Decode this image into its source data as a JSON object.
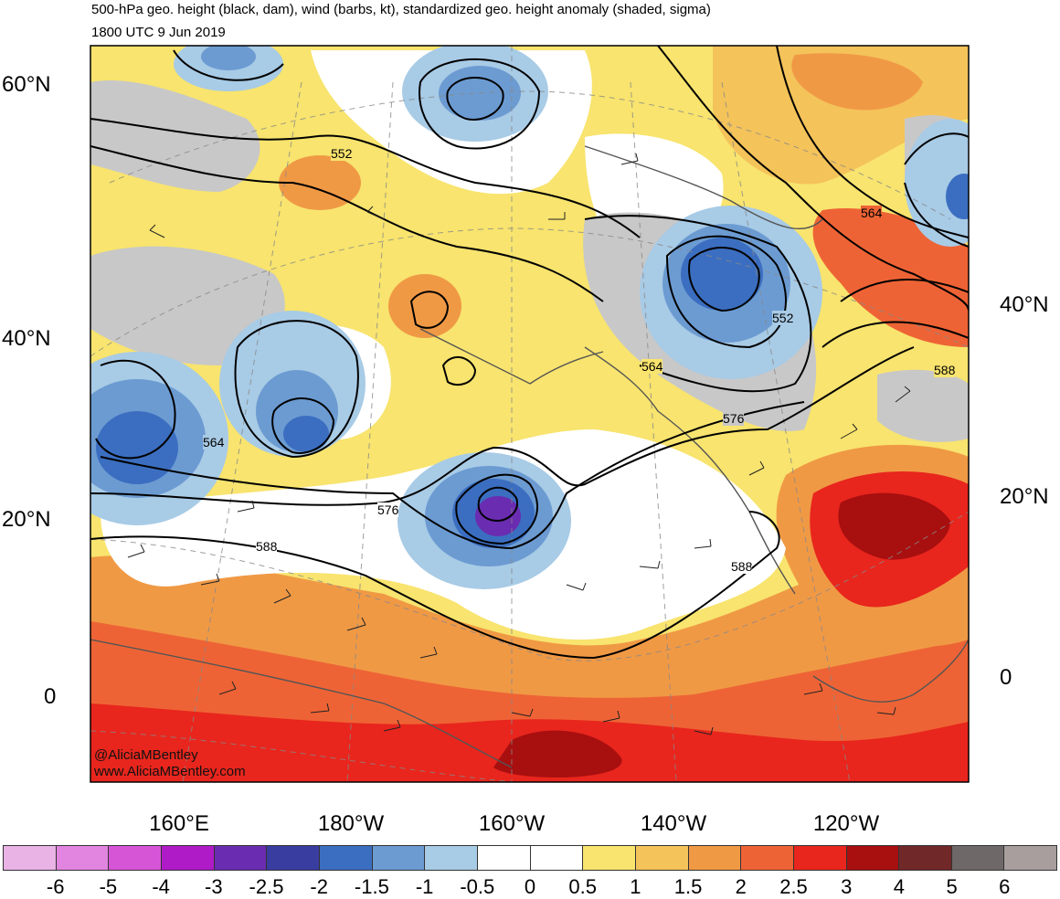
{
  "header": {
    "title": "500-hPa geo. height (black, dam), wind (barbs, kt), standardized geo. height anomaly (shaded, sigma)",
    "valid_time": "1800 UTC 9 Jun 2019"
  },
  "map": {
    "lat_labels_left": [
      "60°N",
      "40°N",
      "20°N",
      "0"
    ],
    "lat_labels_right": [
      "40°N",
      "20°N",
      "0"
    ],
    "lon_labels": [
      "160°E",
      "180°W",
      "160°W",
      "140°W",
      "120°W"
    ],
    "height_contour_labels": [
      "552",
      "552",
      "564",
      "564",
      "564",
      "576",
      "576",
      "588",
      "588",
      "588"
    ],
    "watermark": {
      "handle": "@AliciaMBentley",
      "site": "www.AliciaMBentley.com"
    }
  },
  "colorbar": {
    "labels": [
      "-6",
      "-5",
      "-4",
      "-3",
      "-2.5",
      "-2",
      "-1.5",
      "-1",
      "-0.5",
      "0",
      "0.5",
      "1",
      "1.5",
      "2",
      "2.5",
      "3",
      "4",
      "5",
      "6"
    ],
    "colors": [
      "#e9b3e6",
      "#e285e0",
      "#d654d6",
      "#b01bc8",
      "#6a2cb0",
      "#3a3da0",
      "#3b6ec0",
      "#6c9bd2",
      "#a8cbe6",
      "#ffffff",
      "#ffffff",
      "#f8e46e",
      "#f4c35a",
      "#f09945",
      "#ee6335",
      "#e8261d",
      "#a80f0f",
      "#702828",
      "#6e6868",
      "#a89e9e"
    ]
  }
}
